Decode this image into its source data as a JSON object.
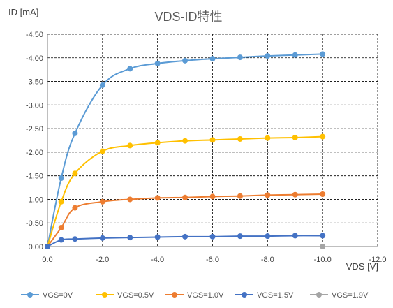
{
  "chart_data": {
    "type": "line",
    "title": "VDS-ID特性",
    "xlabel": "VDS [V]",
    "ylabel": "ID [mA]",
    "xlim": [
      0,
      -12
    ],
    "ylim": [
      0,
      -4.5
    ],
    "x_ticks": [
      "0.0",
      "-2.0",
      "-4.0",
      "-6.0",
      "-8.0",
      "-10.0",
      "-12.0"
    ],
    "y_ticks": [
      "0.00",
      "-0.50",
      "-1.00",
      "-1.50",
      "-2.00",
      "-2.50",
      "-3.00",
      "-3.50",
      "-4.00",
      "-4.50"
    ],
    "grid": true,
    "legend_position": "bottom",
    "x": [
      0,
      -0.5,
      -1,
      -2,
      -3,
      -4,
      -5,
      -6,
      -7,
      -8,
      -9,
      -10
    ],
    "series": [
      {
        "name": "VGS=0V",
        "color": "#5B9BD5",
        "values": [
          0,
          -1.45,
          -2.4,
          -3.42,
          -3.77,
          -3.88,
          -3.94,
          -3.98,
          -4.01,
          -4.04,
          -4.06,
          -4.08
        ]
      },
      {
        "name": "VGS=0.5V",
        "color": "#FFC000",
        "values": [
          0,
          -0.95,
          -1.55,
          -2.02,
          -2.14,
          -2.2,
          -2.24,
          -2.26,
          -2.28,
          -2.3,
          -2.31,
          -2.33
        ]
      },
      {
        "name": "VGS=1.0V",
        "color": "#ED7D31",
        "values": [
          0,
          -0.4,
          -0.82,
          -0.95,
          -1.0,
          -1.03,
          -1.04,
          -1.06,
          -1.07,
          -1.09,
          -1.1,
          -1.11
        ]
      },
      {
        "name": "VGS=1.5V",
        "color": "#4472C4",
        "values": [
          0,
          -0.14,
          -0.16,
          -0.18,
          -0.19,
          -0.2,
          -0.21,
          -0.21,
          -0.22,
          -0.22,
          -0.23,
          -0.23
        ]
      },
      {
        "name": "VGS=1.9V",
        "color": "#A5A5A5",
        "values": [
          null,
          null,
          null,
          null,
          null,
          null,
          null,
          null,
          null,
          null,
          null,
          0
        ]
      }
    ]
  }
}
